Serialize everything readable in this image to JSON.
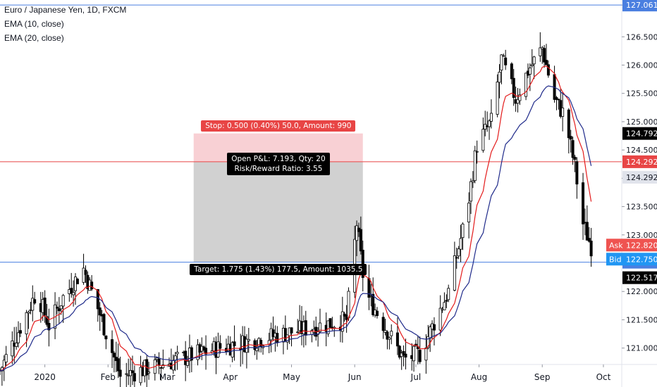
{
  "legend": {
    "title": "Euro / Japanese Yen, 1D, FXCM",
    "ema1": "EMA (10, close)",
    "ema2": "EMA (20, close)"
  },
  "colors": {
    "ema10": "#e31b1b",
    "ema20": "#1f2a8a",
    "entry_line": "#e84545",
    "target_line": "#4a7fe0",
    "stop_zone": "#f7c8cc",
    "profit_zone": "#cfcfcf",
    "ask": "#ef5350",
    "bid": "#2196f3"
  },
  "position": {
    "stop_label": "Stop: 0.500 (0.40%) 50.0, Amount: 990",
    "pnl_line1": "Open P&L: 7.193, Qty: 20",
    "pnl_line2": "Risk/Reward Ratio: 3.55",
    "target_label": "Target: 1.775 (1.43%) 177.5, Amount: 1035.5",
    "entry": 124.292,
    "stop": 124.792,
    "target": 122.517,
    "start_date": "2020-03-14",
    "end_date": "2020-06-05"
  },
  "price_tags": {
    "top": "127.061",
    "stop": "124.792",
    "entry_a": "124.292",
    "entry_b": "124.292",
    "ask_label": "Ask",
    "ask": "122.820",
    "bid_label": "Bid",
    "bid": "122.750",
    "target_a": "122.517",
    "target_b": "122.517"
  },
  "chart_data": {
    "type": "candlestick",
    "title": "Euro / Japanese Yen, 1D, FXCM",
    "y_ticks": [
      "127.061",
      "126.500",
      "126.000",
      "125.500",
      "125.000",
      "124.500",
      "124.000",
      "123.500",
      "123.000",
      "122.500",
      "122.000",
      "121.500",
      "121.000"
    ],
    "x_ticks": [
      "2020",
      "Feb",
      "Mar",
      "Apr",
      "May",
      "Jun",
      "Jul",
      "Aug",
      "Sep",
      "Oct"
    ],
    "ylim": [
      120.71,
      127.15
    ],
    "x_range": [
      "2019-12-10",
      "2020-10-10"
    ],
    "key_points": [
      {
        "date": "2019-12-10",
        "close": 120.6
      },
      {
        "date": "2019-12-28",
        "close": 122.0
      },
      {
        "date": "2020-01-03",
        "close": 121.4
      },
      {
        "date": "2020-01-10",
        "close": 121.9
      },
      {
        "date": "2020-01-20",
        "close": 122.4
      },
      {
        "date": "2020-01-28",
        "close": 121.6
      },
      {
        "date": "2020-02-07",
        "close": 120.5
      },
      {
        "date": "2020-03-26",
        "close": 121.0
      },
      {
        "date": "2020-05-28",
        "close": 121.5
      },
      {
        "date": "2020-06-02",
        "close": 123.2
      },
      {
        "date": "2020-06-06",
        "close": 122.0
      },
      {
        "date": "2020-06-25",
        "close": 120.8
      },
      {
        "date": "2020-07-03",
        "close": 120.9
      },
      {
        "date": "2020-07-17",
        "close": 122.0
      },
      {
        "date": "2020-07-26",
        "close": 123.4
      },
      {
        "date": "2020-07-31",
        "close": 124.6
      },
      {
        "date": "2020-08-07",
        "close": 125.0
      },
      {
        "date": "2020-08-12",
        "close": 126.1
      },
      {
        "date": "2020-08-19",
        "close": 125.4
      },
      {
        "date": "2020-08-25",
        "close": 125.9
      },
      {
        "date": "2020-09-01",
        "close": 126.3
      },
      {
        "date": "2020-09-07",
        "close": 125.4
      },
      {
        "date": "2020-09-12",
        "close": 125.1
      },
      {
        "date": "2020-09-17",
        "close": 124.2
      },
      {
        "date": "2020-09-21",
        "close": 123.2
      },
      {
        "date": "2020-09-25",
        "close": 122.8
      }
    ],
    "ema": [
      {
        "name": "EMA (10, close)",
        "period": 10
      },
      {
        "name": "EMA (20, close)",
        "period": 20
      }
    ]
  }
}
